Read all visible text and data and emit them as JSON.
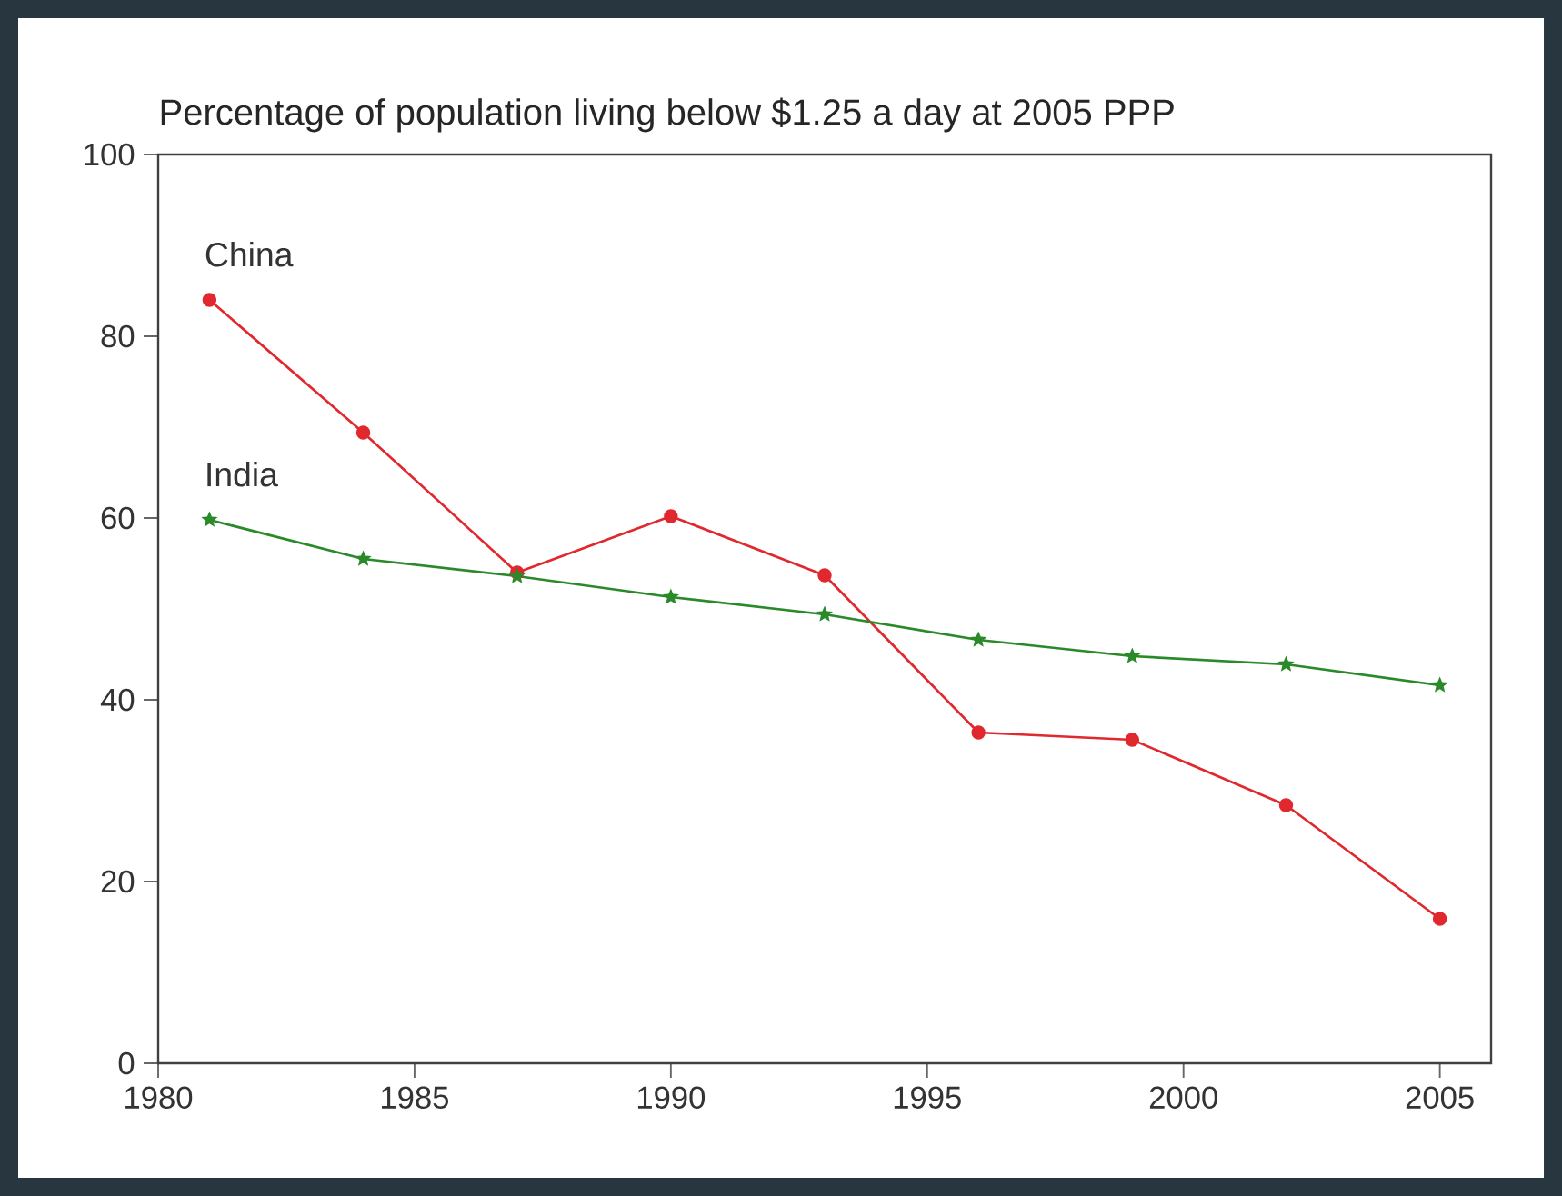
{
  "chart_data": {
    "type": "line",
    "title": "Percentage of population living below $1.25 a day at 2005 PPP",
    "x": [
      1981,
      1984,
      1987,
      1990,
      1993,
      1996,
      1999,
      2002,
      2005
    ],
    "series": [
      {
        "name": "China",
        "color": "#e0282e",
        "marker": "circle",
        "values": [
          84.0,
          69.4,
          54.0,
          60.2,
          53.7,
          36.4,
          35.6,
          28.4,
          15.9
        ]
      },
      {
        "name": "India",
        "color": "#2a8a2a",
        "marker": "star",
        "values": [
          59.8,
          55.5,
          53.6,
          51.3,
          49.4,
          46.6,
          44.8,
          43.9,
          41.6
        ]
      }
    ],
    "xlim": [
      1980,
      2006
    ],
    "ylim": [
      0,
      100
    ],
    "xticks": [
      1980,
      1985,
      1990,
      1995,
      2000,
      2005
    ],
    "yticks": [
      0,
      20,
      40,
      60,
      80,
      100
    ],
    "grid": false,
    "legend": false,
    "line_style": "solid"
  }
}
